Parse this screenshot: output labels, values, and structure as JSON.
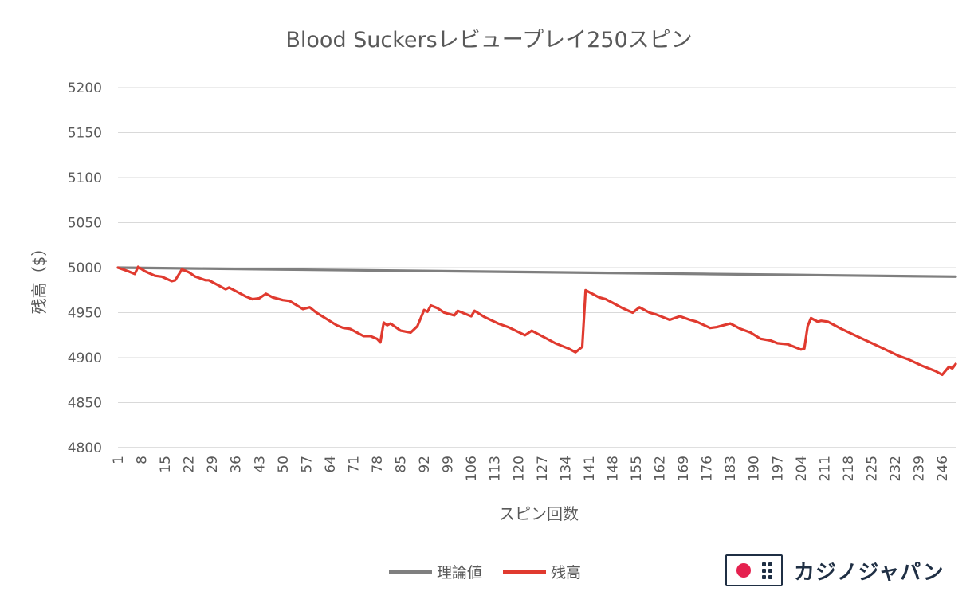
{
  "chart_data": {
    "type": "line",
    "title": "Blood Suckersレビュープレイ250スピン",
    "xlabel": "スピン回数",
    "ylabel": "残高（$）",
    "ylim": [
      4800,
      5200
    ],
    "yticks": [
      4800,
      4850,
      4900,
      4950,
      5000,
      5050,
      5100,
      5150,
      5200
    ],
    "xrange": [
      1,
      250
    ],
    "xtick_labels": [
      "1",
      "8",
      "15",
      "22",
      "29",
      "36",
      "43",
      "50",
      "57",
      "64",
      "71",
      "78",
      "85",
      "92",
      "99",
      "106",
      "113",
      "120",
      "127",
      "134",
      "141",
      "148",
      "155",
      "162",
      "169",
      "176",
      "183",
      "190",
      "197",
      "204",
      "211",
      "218",
      "225",
      "232",
      "239",
      "246"
    ],
    "grid": "horizontal",
    "legend_position": "bottom",
    "series": [
      {
        "name": "理論値",
        "color": "#7f7f7f",
        "points": [
          [
            1,
            5000
          ],
          [
            25,
            4999
          ],
          [
            50,
            4998
          ],
          [
            75,
            4997
          ],
          [
            100,
            4996
          ],
          [
            125,
            4995
          ],
          [
            150,
            4994
          ],
          [
            175,
            4993
          ],
          [
            200,
            4992
          ],
          [
            225,
            4991
          ],
          [
            250,
            4990
          ]
        ]
      },
      {
        "name": "残高",
        "color": "#e03a2f",
        "points": [
          [
            1,
            5000
          ],
          [
            4,
            4996
          ],
          [
            6,
            4993
          ],
          [
            7,
            5001
          ],
          [
            9,
            4996
          ],
          [
            12,
            4991
          ],
          [
            14,
            4990
          ],
          [
            17,
            4985
          ],
          [
            18,
            4986
          ],
          [
            20,
            4998
          ],
          [
            22,
            4995
          ],
          [
            24,
            4990
          ],
          [
            27,
            4986
          ],
          [
            28,
            4986
          ],
          [
            33,
            4976
          ],
          [
            34,
            4978
          ],
          [
            36,
            4974
          ],
          [
            39,
            4968
          ],
          [
            41,
            4965
          ],
          [
            43,
            4966
          ],
          [
            45,
            4971
          ],
          [
            47,
            4967
          ],
          [
            50,
            4964
          ],
          [
            52,
            4963
          ],
          [
            56,
            4954
          ],
          [
            58,
            4956
          ],
          [
            60,
            4950
          ],
          [
            66,
            4936
          ],
          [
            68,
            4933
          ],
          [
            70,
            4932
          ],
          [
            74,
            4924
          ],
          [
            76,
            4924
          ],
          [
            78,
            4921
          ],
          [
            79,
            4917
          ],
          [
            80,
            4939
          ],
          [
            81,
            4936
          ],
          [
            82,
            4938
          ],
          [
            85,
            4930
          ],
          [
            88,
            4928
          ],
          [
            90,
            4935
          ],
          [
            92,
            4953
          ],
          [
            93,
            4951
          ],
          [
            94,
            4958
          ],
          [
            96,
            4955
          ],
          [
            98,
            4950
          ],
          [
            101,
            4947
          ],
          [
            102,
            4952
          ],
          [
            106,
            4946
          ],
          [
            107,
            4952
          ],
          [
            110,
            4945
          ],
          [
            114,
            4938
          ],
          [
            117,
            4934
          ],
          [
            122,
            4925
          ],
          [
            124,
            4930
          ],
          [
            128,
            4922
          ],
          [
            131,
            4916
          ],
          [
            133,
            4913
          ],
          [
            135,
            4910
          ],
          [
            137,
            4906
          ],
          [
            139,
            4912
          ],
          [
            140,
            4975
          ],
          [
            142,
            4971
          ],
          [
            144,
            4967
          ],
          [
            146,
            4965
          ],
          [
            148,
            4961
          ],
          [
            151,
            4955
          ],
          [
            154,
            4950
          ],
          [
            156,
            4956
          ],
          [
            159,
            4950
          ],
          [
            161,
            4948
          ],
          [
            165,
            4942
          ],
          [
            168,
            4946
          ],
          [
            171,
            4942
          ],
          [
            173,
            4940
          ],
          [
            177,
            4933
          ],
          [
            179,
            4934
          ],
          [
            183,
            4938
          ],
          [
            186,
            4932
          ],
          [
            189,
            4928
          ],
          [
            192,
            4921
          ],
          [
            195,
            4919
          ],
          [
            197,
            4916
          ],
          [
            200,
            4915
          ],
          [
            202,
            4912
          ],
          [
            204,
            4909
          ],
          [
            205,
            4910
          ],
          [
            206,
            4935
          ],
          [
            207,
            4944
          ],
          [
            209,
            4940
          ],
          [
            210,
            4941
          ],
          [
            212,
            4940
          ],
          [
            216,
            4932
          ],
          [
            220,
            4925
          ],
          [
            224,
            4918
          ],
          [
            228,
            4911
          ],
          [
            233,
            4902
          ],
          [
            236,
            4898
          ],
          [
            240,
            4891
          ],
          [
            244,
            4885
          ],
          [
            246,
            4881
          ],
          [
            248,
            4890
          ],
          [
            249,
            4888
          ],
          [
            250,
            4893
          ]
        ]
      }
    ]
  },
  "logo": {
    "text": "カジノジャパン",
    "accent": "#e5214f",
    "ink": "#1f2f44"
  }
}
